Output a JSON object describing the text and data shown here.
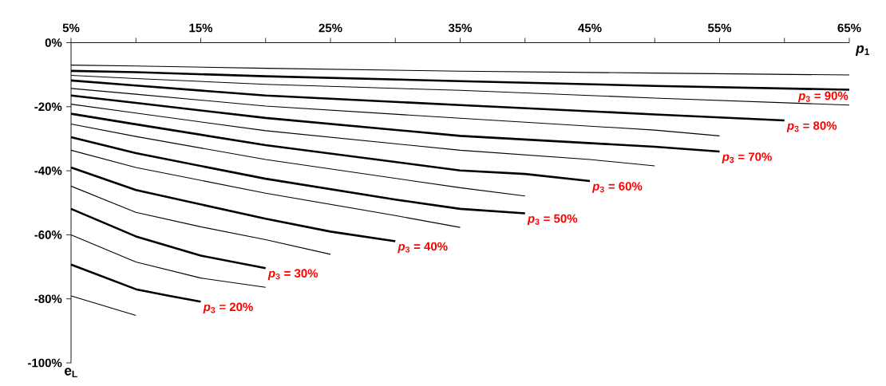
{
  "chart_data": {
    "type": "line",
    "xlabel": "*p*$_{1}$",
    "ylabel": "e$_{L}$",
    "xlim": [
      5,
      65
    ],
    "ylim": [
      -100,
      0
    ],
    "xticks": [
      {
        "value": 5,
        "label": "5%"
      },
      {
        "value": 10,
        "label": null
      },
      {
        "value": 15,
        "label": "15%"
      },
      {
        "value": 20,
        "label": null
      },
      {
        "value": 25,
        "label": "25%"
      },
      {
        "value": 30,
        "label": null
      },
      {
        "value": 35,
        "label": "35%"
      },
      {
        "value": 40,
        "label": null
      },
      {
        "value": 45,
        "label": "45%"
      },
      {
        "value": 50,
        "label": null
      },
      {
        "value": 55,
        "label": "55%"
      },
      {
        "value": 60,
        "label": null
      },
      {
        "value": 65,
        "label": "65%"
      }
    ],
    "yticks": [
      {
        "value": 0,
        "label": "0%"
      },
      {
        "value": -20,
        "label": "-20%"
      },
      {
        "value": -40,
        "label": "-40%"
      },
      {
        "value": -60,
        "label": "-60%"
      },
      {
        "value": -80,
        "label": "-80%"
      },
      {
        "value": -100,
        "label": "-100%"
      }
    ],
    "series": [
      {
        "color": "#000000",
        "x": [
          5,
          10,
          20,
          35,
          50,
          65
        ],
        "values": [
          -7.0,
          -7.3,
          -8.0,
          -8.9,
          -9.5,
          -10.1
        ]
      },
      {
        "name": "*p*$_{3}$ = 90%",
        "color": "#000000",
        "x": [
          5,
          10,
          20,
          35,
          50,
          65
        ],
        "values": [
          -8.8,
          -9.2,
          -10.5,
          -12.0,
          -13.5,
          -14.7
        ]
      },
      {
        "color": "#000000",
        "x": [
          5,
          10,
          20,
          35,
          50,
          65
        ],
        "values": [
          -10.2,
          -11.2,
          -13.0,
          -14.9,
          -17.3,
          -19.5
        ]
      },
      {
        "name": "*p*$_{3}$ = 80%",
        "color": "#000000",
        "x": [
          5,
          10,
          20,
          35,
          50,
          60
        ],
        "values": [
          -11.8,
          -13.4,
          -16.5,
          -19.5,
          -22.4,
          -24.3
        ]
      },
      {
        "color": "#000000",
        "x": [
          5,
          10,
          20,
          35,
          50,
          55
        ],
        "values": [
          -14.3,
          -16.1,
          -19.8,
          -23.6,
          -27.3,
          -29.1
        ]
      },
      {
        "name": "*p*$_{3}$ = 70%",
        "color": "#000000",
        "x": [
          5,
          10,
          20,
          35,
          50,
          55
        ],
        "values": [
          -16.5,
          -18.8,
          -23.5,
          -29.1,
          -32.5,
          -34.0
        ]
      },
      {
        "color": "#000000",
        "x": [
          5,
          10,
          20,
          35,
          45,
          50
        ],
        "values": [
          -19.2,
          -22.0,
          -27.5,
          -33.6,
          -36.5,
          -38.5
        ]
      },
      {
        "name": "*p*$_{3}$ = 60%",
        "color": "#000000",
        "x": [
          5,
          10,
          20,
          35,
          40,
          45
        ],
        "values": [
          -22.2,
          -25.5,
          -32.0,
          -39.9,
          -41.0,
          -43.2
        ]
      },
      {
        "color": "#000000",
        "x": [
          5,
          10,
          20,
          35,
          40
        ],
        "values": [
          -25.4,
          -29.3,
          -36.5,
          -45.3,
          -47.9
        ]
      },
      {
        "name": "*p*$_{3}$ = 50%",
        "color": "#000000",
        "x": [
          5,
          10,
          20,
          30,
          35,
          40
        ],
        "values": [
          -29.5,
          -34.5,
          -42.5,
          -49.0,
          -51.9,
          -53.3
        ]
      },
      {
        "color": "#000000",
        "x": [
          5,
          10,
          20,
          30,
          35
        ],
        "values": [
          -33.6,
          -39.0,
          -47.0,
          -54.0,
          -57.7
        ]
      },
      {
        "name": "*p*$_{3}$ = 40%",
        "color": "#000000",
        "x": [
          5,
          10,
          20,
          25,
          30
        ],
        "values": [
          -39.0,
          -46.0,
          -55.0,
          -59.0,
          -62.0
        ]
      },
      {
        "color": "#000000",
        "x": [
          5,
          10,
          15,
          20,
          25
        ],
        "values": [
          -44.8,
          -53.0,
          -57.5,
          -61.5,
          -66.1
        ]
      },
      {
        "name": "*p*$_{3}$ = 30%",
        "color": "#000000",
        "x": [
          5,
          10,
          15,
          20
        ],
        "values": [
          -51.9,
          -60.5,
          -66.5,
          -70.4
        ]
      },
      {
        "color": "#000000",
        "x": [
          5,
          10,
          15,
          20
        ],
        "values": [
          -60.0,
          -68.5,
          -73.5,
          -76.4
        ]
      },
      {
        "name": "*p*$_{3}$ = 20%",
        "color": "#000000",
        "x": [
          5,
          10,
          12.5,
          15
        ],
        "values": [
          -69.3,
          -77.0,
          -79.0,
          -80.9
        ]
      },
      {
        "color": "#000000",
        "x": [
          5,
          10
        ],
        "values": [
          -79.1,
          -85.2
        ]
      }
    ]
  }
}
